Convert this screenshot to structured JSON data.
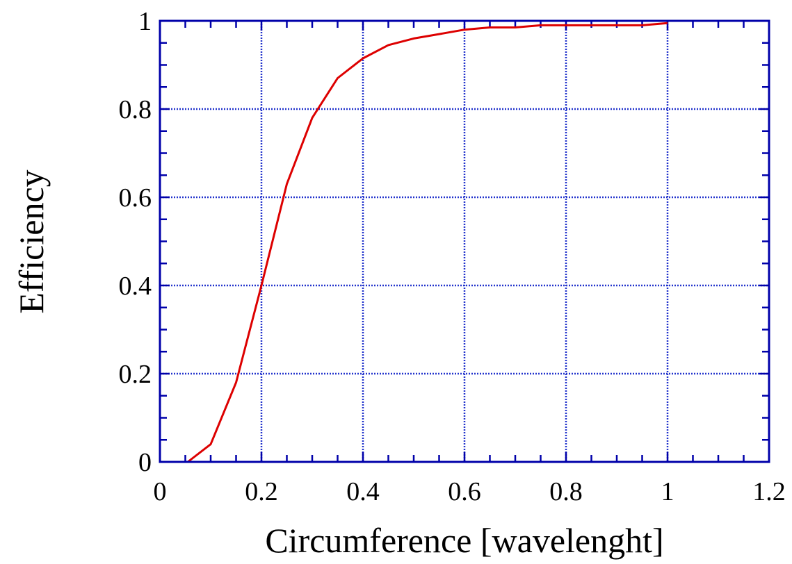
{
  "chart_data": {
    "type": "line",
    "title": "",
    "xlabel": "Circumference [wavelenght]",
    "ylabel": "Efficiency",
    "xlim": [
      0,
      1.2
    ],
    "ylim": [
      0,
      1
    ],
    "x_ticks": [
      "0",
      "0.2",
      "0.4",
      "0.6",
      "0.8",
      "1",
      "1.2"
    ],
    "y_ticks": [
      "0",
      "0.2",
      "0.4",
      "0.6",
      "0.8",
      "1"
    ],
    "grid": true,
    "legend": "none",
    "series": [
      {
        "color": "#dd0000",
        "x": [
          0.055,
          0.1,
          0.15,
          0.2,
          0.25,
          0.3,
          0.35,
          0.4,
          0.45,
          0.5,
          0.55,
          0.6,
          0.65,
          0.7,
          0.75,
          0.8,
          0.85,
          0.9,
          0.95,
          1.0
        ],
        "y": [
          0.0,
          0.04,
          0.18,
          0.4,
          0.63,
          0.78,
          0.87,
          0.915,
          0.945,
          0.96,
          0.97,
          0.98,
          0.985,
          0.985,
          0.99,
          0.99,
          0.99,
          0.99,
          0.99,
          0.995
        ]
      }
    ]
  },
  "colors": {
    "axis": "#0000aa",
    "grid": "#2233cc",
    "line": "#dd0000"
  }
}
